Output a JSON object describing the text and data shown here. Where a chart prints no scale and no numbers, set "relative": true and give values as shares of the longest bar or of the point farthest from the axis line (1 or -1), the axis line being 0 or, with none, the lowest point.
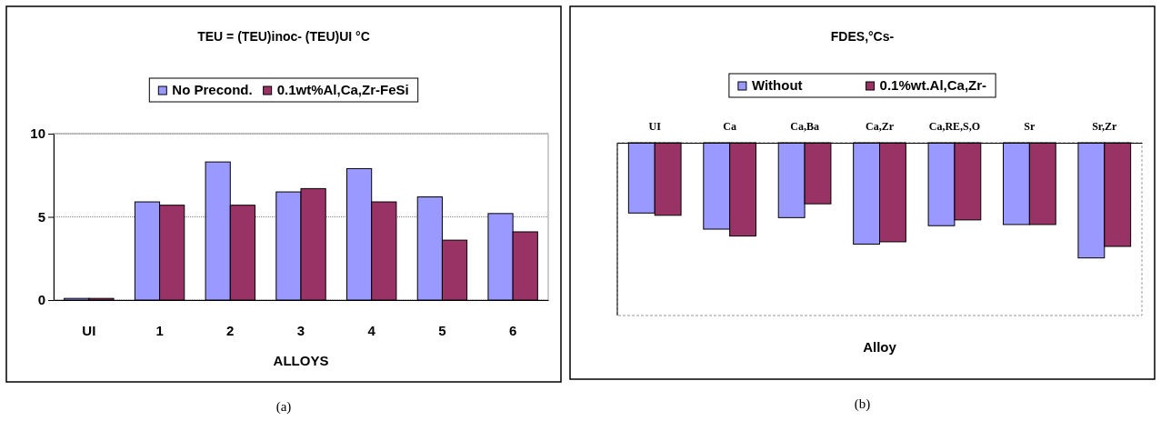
{
  "chart_data": [
    {
      "type": "bar",
      "title": "TEU = (TEU)inoc- (TEU)UI °C",
      "xlabel": "ALLOYS",
      "categories": [
        "UI",
        "1",
        "2",
        "3",
        "4",
        "5",
        "6"
      ],
      "series": [
        {
          "name": "No Precond.",
          "color": "#9999ff",
          "values": [
            0.1,
            5.9,
            8.3,
            6.5,
            7.9,
            6.2,
            5.2
          ]
        },
        {
          "name": "0.1wt%Al,Ca,Zr-FeSi",
          "color": "#993366",
          "values": [
            0.1,
            5.7,
            5.7,
            6.7,
            5.9,
            3.6,
            4.1
          ]
        }
      ],
      "ylim": [
        0,
        10
      ],
      "yticks": [
        0,
        5,
        10
      ],
      "grid": "y",
      "legend": "top",
      "annotations": [
        "(a)"
      ]
    },
    {
      "type": "bar",
      "title": "FDES,°Cs-",
      "xlabel": "Alloy",
      "categories": [
        "UI",
        "Ca",
        "Ca,Ba",
        "Ca,Zr",
        "Ca,RE,S,O",
        "Sr",
        "Sr,Zr"
      ],
      "relative": true,
      "series": [
        {
          "name": "Without",
          "color": "#9999ff",
          "values": [
            -0.61,
            -0.75,
            -0.65,
            -0.88,
            -0.72,
            -0.71,
            -1
          ]
        },
        {
          "name": "0.1%wt.Al,Ca,Zr-",
          "color": "#993366",
          "values": [
            -0.63,
            -0.81,
            -0.53,
            -0.86,
            -0.67,
            -0.71,
            -0.9
          ]
        }
      ],
      "legend": "top",
      "annotations": [
        "(b)"
      ]
    }
  ]
}
